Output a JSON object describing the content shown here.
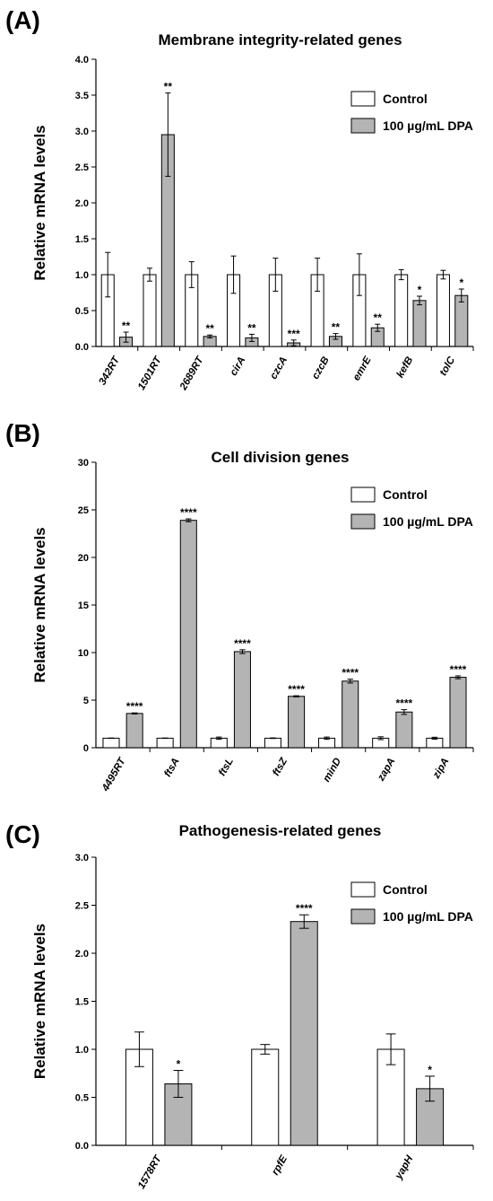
{
  "colors": {
    "control": "#ffffff",
    "dpa": "#b4b4b4",
    "stroke": "#000000"
  },
  "chart_data": [
    {
      "panel": "(A)",
      "type": "bar",
      "title": "Membrane integrity-related genes",
      "xlabel": "",
      "ylabel": "Relative mRNA levels",
      "ylim": [
        0,
        4.0
      ],
      "yticks": [
        "0.0",
        "0.5",
        "1.0",
        "1.5",
        "2.0",
        "2.5",
        "3.0",
        "3.5",
        "4.0"
      ],
      "categories": [
        "342RT",
        "1501RT",
        "2689RT",
        "cirA",
        "czcA",
        "czcB",
        "emrE",
        "kefB",
        "tolC"
      ],
      "series": [
        {
          "name": "Control",
          "values": [
            1.0,
            1.0,
            1.0,
            1.0,
            1.0,
            1.0,
            1.0,
            1.0,
            1.0
          ],
          "errors": [
            0.31,
            0.09,
            0.18,
            0.26,
            0.23,
            0.23,
            0.29,
            0.07,
            0.06
          ]
        },
        {
          "name": "100 µg/mL DPA",
          "values": [
            0.13,
            2.95,
            0.14,
            0.12,
            0.05,
            0.14,
            0.26,
            0.64,
            0.71
          ],
          "errors": [
            0.07,
            0.58,
            0.02,
            0.05,
            0.04,
            0.04,
            0.05,
            0.06,
            0.09
          ]
        }
      ],
      "significance": [
        "**",
        "**",
        "**",
        "**",
        "***",
        "**",
        "**",
        "*",
        "*"
      ],
      "legend": "top-right",
      "grid": false
    },
    {
      "panel": "(B)",
      "type": "bar",
      "title": "Cell division genes",
      "xlabel": "",
      "ylabel": "Relative mRNA levels",
      "ylim": [
        0,
        30
      ],
      "yticks": [
        "0",
        "5",
        "10",
        "15",
        "20",
        "25",
        "30"
      ],
      "categories": [
        "4495RT",
        "ftsA",
        "ftsL",
        "ftsZ",
        "minD",
        "zapA",
        "zipA"
      ],
      "series": [
        {
          "name": "Control",
          "values": [
            1.0,
            1.0,
            1.0,
            1.0,
            1.0,
            1.0,
            1.0
          ],
          "errors": [
            0.02,
            0.02,
            0.12,
            0.03,
            0.12,
            0.15,
            0.1
          ]
        },
        {
          "name": "100 µg/mL DPA",
          "values": [
            3.6,
            23.9,
            10.1,
            5.4,
            7.0,
            3.75,
            7.4
          ],
          "errors": [
            0.06,
            0.15,
            0.2,
            0.06,
            0.2,
            0.25,
            0.15
          ]
        }
      ],
      "significance": [
        "****",
        "****",
        "****",
        "****",
        "****",
        "****",
        "****"
      ],
      "legend": "top-right",
      "grid": false
    },
    {
      "panel": "(C)",
      "type": "bar",
      "title": "Pathogenesis-related genes",
      "xlabel": "",
      "ylabel": "Relative mRNA levels",
      "ylim": [
        0,
        3.0
      ],
      "yticks": [
        "0.0",
        "0.5",
        "1.0",
        "1.5",
        "2.0",
        "2.5",
        "3.0"
      ],
      "categories": [
        "1578RT",
        "rpfE",
        "yapH"
      ],
      "series": [
        {
          "name": "Control",
          "values": [
            1.0,
            1.0,
            1.0
          ],
          "errors": [
            0.18,
            0.05,
            0.16
          ]
        },
        {
          "name": "100 µg/mL DPA",
          "values": [
            0.64,
            2.33,
            0.59
          ],
          "errors": [
            0.14,
            0.07,
            0.13
          ]
        }
      ],
      "significance": [
        "*",
        "****",
        "*"
      ],
      "legend": "top-right",
      "grid": false
    }
  ]
}
